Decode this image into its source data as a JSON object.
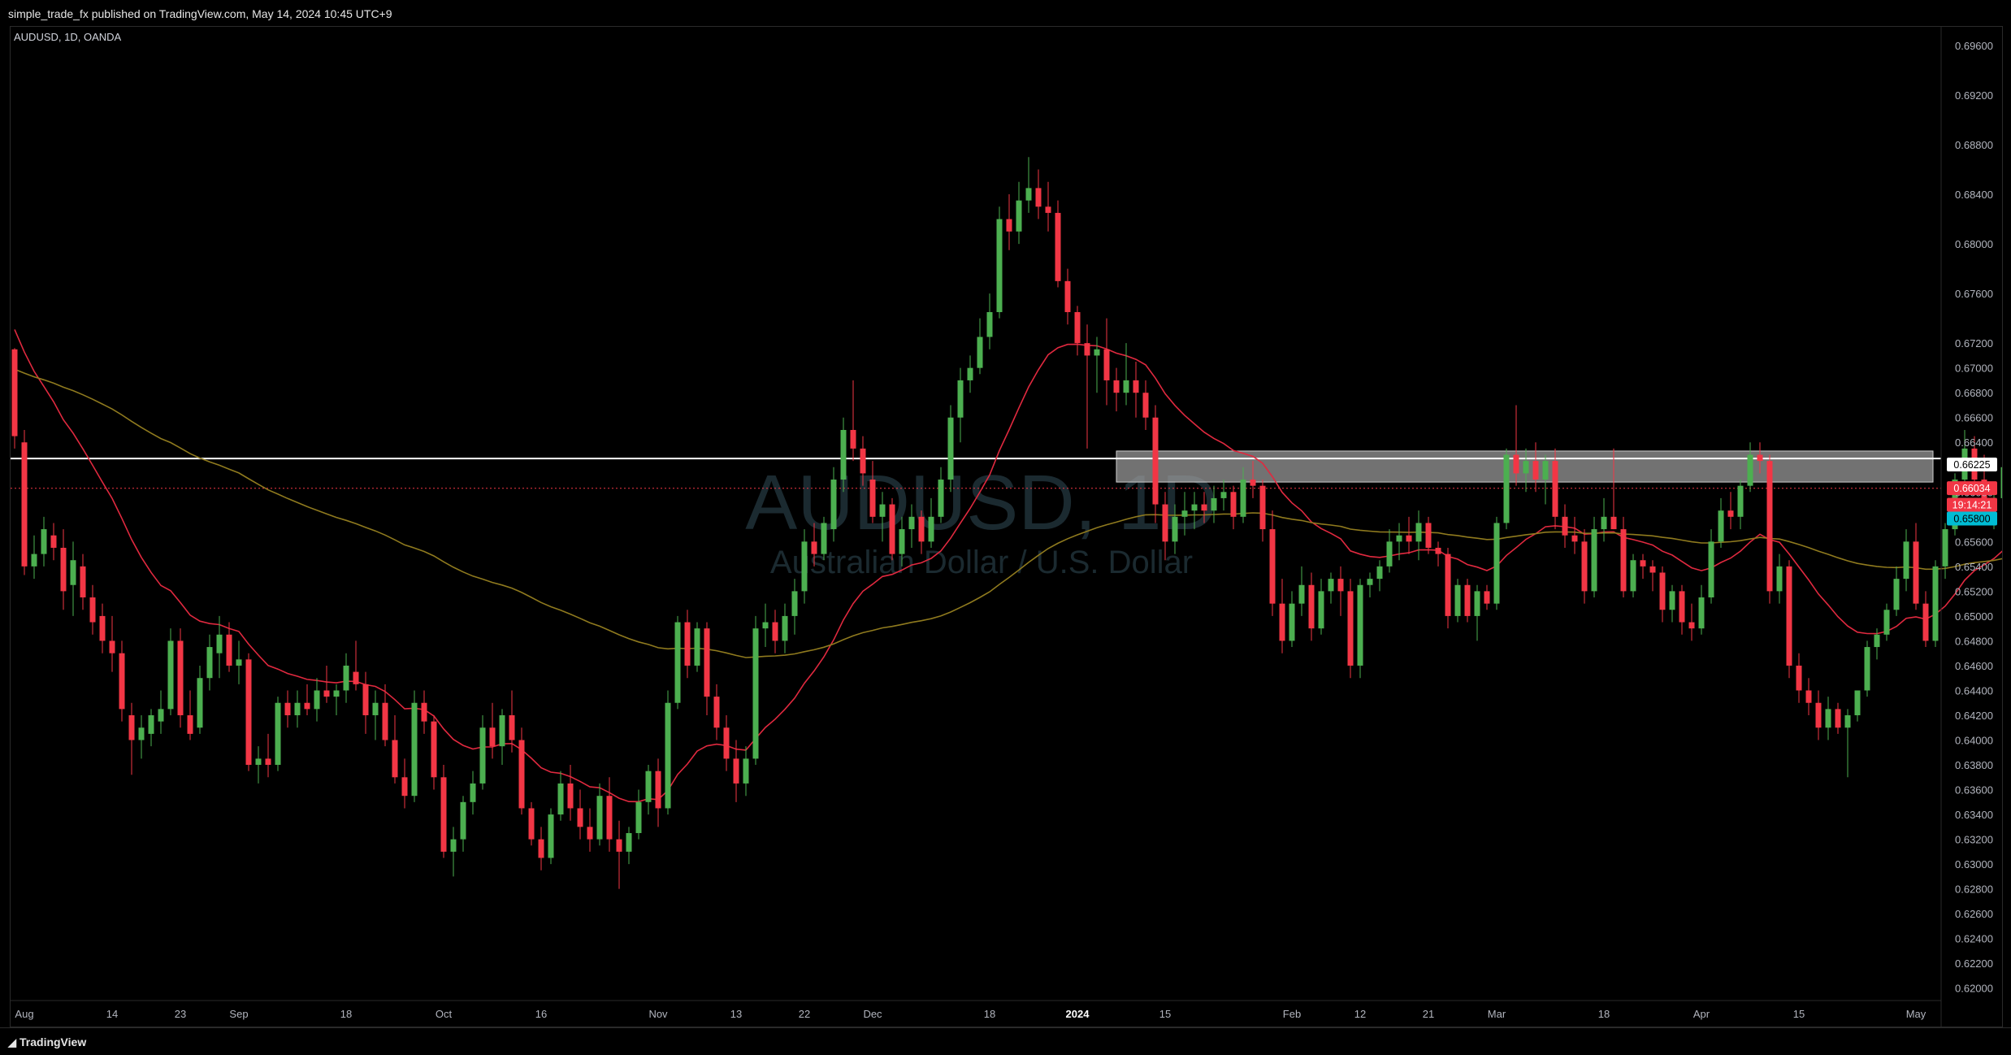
{
  "header": {
    "publish_note": "simple_trade_fx published on TradingView.com, May 14, 2024 10:45 UTC+9"
  },
  "footer": {
    "brand": "TradingView"
  },
  "colors": {
    "up": "#4caf50",
    "down": "#f23645",
    "ema_short": "#e0293f",
    "ema_long": "#8f7a1e",
    "zone_fill": "#9e9e9e",
    "level_line": "#ffffff",
    "price_tag": "#f23645",
    "last_tag": "#00bcd4",
    "grid_text": "#b2b5be"
  },
  "chart_data": {
    "type": "candlestick",
    "symbol_label": "AUDUSD, 1D, OANDA",
    "watermark_symbol": "AUDUSD, 1D",
    "watermark_name": "Australian Dollar / U.S. Dollar",
    "ylim": [
      0.619,
      0.6975
    ],
    "y_ticks": [
      "0.69600",
      "0.69200",
      "0.68800",
      "0.68400",
      "0.68000",
      "0.67600",
      "0.67200",
      "0.67000",
      "0.66800",
      "0.66600",
      "0.66400",
      "0.66200",
      "0.66000",
      "0.65800",
      "0.65600",
      "0.65400",
      "0.65200",
      "0.65000",
      "0.64800",
      "0.64600",
      "0.64400",
      "0.64200",
      "0.64000",
      "0.63800",
      "0.63600",
      "0.63400",
      "0.63200",
      "0.63000",
      "0.62800",
      "0.62600",
      "0.62400",
      "0.62200",
      "0.62000"
    ],
    "x_ticks": [
      {
        "label": "Aug",
        "i": 1
      },
      {
        "label": "14",
        "i": 10
      },
      {
        "label": "23",
        "i": 17
      },
      {
        "label": "Sep",
        "i": 23
      },
      {
        "label": "18",
        "i": 34
      },
      {
        "label": "Oct",
        "i": 44
      },
      {
        "label": "16",
        "i": 54
      },
      {
        "label": "Nov",
        "i": 66
      },
      {
        "label": "13",
        "i": 74
      },
      {
        "label": "22",
        "i": 81
      },
      {
        "label": "Dec",
        "i": 88
      },
      {
        "label": "18",
        "i": 100
      },
      {
        "label": "2024",
        "i": 109
      },
      {
        "label": "15",
        "i": 118
      },
      {
        "label": "Feb",
        "i": 131
      },
      {
        "label": "12",
        "i": 138
      },
      {
        "label": "21",
        "i": 145
      },
      {
        "label": "Mar",
        "i": 152
      },
      {
        "label": "18",
        "i": 163
      },
      {
        "label": "Apr",
        "i": 173
      },
      {
        "label": "15",
        "i": 183
      },
      {
        "label": "May",
        "i": 195
      }
    ],
    "resistance_zone": {
      "low": 0.6608,
      "high": 0.6633,
      "start_i": 113
    },
    "horizontal_level": 0.6627,
    "last_price_line": 0.6603,
    "price_tags": [
      {
        "label": "0.66225",
        "value": 0.66225,
        "style": "white"
      },
      {
        "label": "0.66034",
        "value": 0.66034,
        "style": "red"
      },
      {
        "label": "19:14:21",
        "value": 0.659,
        "style": "red"
      },
      {
        "label": "0.65800",
        "value": 0.6579,
        "style": "cyan"
      }
    ],
    "candles": [
      [
        0.6715,
        0.6716,
        0.6635,
        0.6645
      ],
      [
        0.664,
        0.665,
        0.6533,
        0.654
      ],
      [
        0.654,
        0.6565,
        0.653,
        0.655
      ],
      [
        0.655,
        0.658,
        0.654,
        0.657
      ],
      [
        0.6565,
        0.6575,
        0.6545,
        0.6555
      ],
      [
        0.6555,
        0.657,
        0.6505,
        0.652
      ],
      [
        0.6525,
        0.656,
        0.65,
        0.6545
      ],
      [
        0.654,
        0.655,
        0.6505,
        0.6515
      ],
      [
        0.6515,
        0.6525,
        0.6485,
        0.6495
      ],
      [
        0.65,
        0.651,
        0.647,
        0.648
      ],
      [
        0.648,
        0.65,
        0.6455,
        0.647
      ],
      [
        0.647,
        0.648,
        0.6415,
        0.6425
      ],
      [
        0.642,
        0.643,
        0.6372,
        0.64
      ],
      [
        0.64,
        0.642,
        0.6385,
        0.641
      ],
      [
        0.6405,
        0.6425,
        0.6395,
        0.642
      ],
      [
        0.6415,
        0.644,
        0.6405,
        0.6425
      ],
      [
        0.6425,
        0.649,
        0.642,
        0.648
      ],
      [
        0.648,
        0.649,
        0.641,
        0.642
      ],
      [
        0.642,
        0.644,
        0.64,
        0.6405
      ],
      [
        0.641,
        0.646,
        0.6405,
        0.645
      ],
      [
        0.645,
        0.6485,
        0.644,
        0.6475
      ],
      [
        0.647,
        0.65,
        0.645,
        0.6485
      ],
      [
        0.6485,
        0.6495,
        0.6455,
        0.646
      ],
      [
        0.646,
        0.648,
        0.6445,
        0.6465
      ],
      [
        0.6465,
        0.647,
        0.6375,
        0.638
      ],
      [
        0.638,
        0.6395,
        0.6365,
        0.6385
      ],
      [
        0.6385,
        0.6405,
        0.637,
        0.638
      ],
      [
        0.638,
        0.6435,
        0.6375,
        0.643
      ],
      [
        0.643,
        0.644,
        0.641,
        0.642
      ],
      [
        0.642,
        0.644,
        0.641,
        0.643
      ],
      [
        0.643,
        0.6445,
        0.642,
        0.6425
      ],
      [
        0.6425,
        0.645,
        0.6415,
        0.644
      ],
      [
        0.644,
        0.646,
        0.643,
        0.6435
      ],
      [
        0.6435,
        0.6445,
        0.642,
        0.644
      ],
      [
        0.644,
        0.647,
        0.643,
        0.646
      ],
      [
        0.6455,
        0.648,
        0.644,
        0.6445
      ],
      [
        0.6445,
        0.6455,
        0.6405,
        0.642
      ],
      [
        0.642,
        0.644,
        0.64,
        0.643
      ],
      [
        0.643,
        0.6445,
        0.6395,
        0.64
      ],
      [
        0.64,
        0.642,
        0.6365,
        0.637
      ],
      [
        0.637,
        0.6385,
        0.6345,
        0.6355
      ],
      [
        0.6355,
        0.644,
        0.635,
        0.643
      ],
      [
        0.643,
        0.644,
        0.6405,
        0.6415
      ],
      [
        0.6415,
        0.642,
        0.636,
        0.637
      ],
      [
        0.637,
        0.638,
        0.6305,
        0.631
      ],
      [
        0.631,
        0.633,
        0.629,
        0.632
      ],
      [
        0.632,
        0.6355,
        0.631,
        0.635
      ],
      [
        0.635,
        0.6375,
        0.634,
        0.6365
      ],
      [
        0.6365,
        0.642,
        0.636,
        0.641
      ],
      [
        0.641,
        0.643,
        0.6385,
        0.6395
      ],
      [
        0.6395,
        0.6425,
        0.638,
        0.642
      ],
      [
        0.642,
        0.644,
        0.639,
        0.64
      ],
      [
        0.64,
        0.641,
        0.634,
        0.6345
      ],
      [
        0.6345,
        0.635,
        0.6315,
        0.632
      ],
      [
        0.632,
        0.633,
        0.6295,
        0.6305
      ],
      [
        0.6305,
        0.6345,
        0.63,
        0.634
      ],
      [
        0.634,
        0.6375,
        0.6335,
        0.6365
      ],
      [
        0.6365,
        0.638,
        0.6335,
        0.6345
      ],
      [
        0.6345,
        0.636,
        0.632,
        0.633
      ],
      [
        0.633,
        0.6345,
        0.631,
        0.632
      ],
      [
        0.632,
        0.6365,
        0.6315,
        0.6355
      ],
      [
        0.6355,
        0.637,
        0.631,
        0.632
      ],
      [
        0.632,
        0.6335,
        0.628,
        0.631
      ],
      [
        0.631,
        0.633,
        0.63,
        0.6325
      ],
      [
        0.6325,
        0.636,
        0.632,
        0.635
      ],
      [
        0.635,
        0.638,
        0.634,
        0.6375
      ],
      [
        0.6375,
        0.6385,
        0.633,
        0.6345
      ],
      [
        0.6345,
        0.644,
        0.634,
        0.643
      ],
      [
        0.643,
        0.65,
        0.6425,
        0.6495
      ],
      [
        0.6495,
        0.6505,
        0.645,
        0.646
      ],
      [
        0.646,
        0.6495,
        0.6455,
        0.649
      ],
      [
        0.649,
        0.6495,
        0.642,
        0.6435
      ],
      [
        0.6435,
        0.6445,
        0.64,
        0.641
      ],
      [
        0.641,
        0.642,
        0.6375,
        0.6385
      ],
      [
        0.6385,
        0.64,
        0.635,
        0.6365
      ],
      [
        0.6365,
        0.6395,
        0.6355,
        0.6385
      ],
      [
        0.6385,
        0.65,
        0.638,
        0.649
      ],
      [
        0.649,
        0.651,
        0.6475,
        0.6495
      ],
      [
        0.6495,
        0.6505,
        0.647,
        0.648
      ],
      [
        0.648,
        0.651,
        0.647,
        0.65
      ],
      [
        0.65,
        0.653,
        0.6485,
        0.652
      ],
      [
        0.652,
        0.657,
        0.651,
        0.656
      ],
      [
        0.656,
        0.6575,
        0.654,
        0.655
      ],
      [
        0.655,
        0.658,
        0.6545,
        0.6575
      ],
      [
        0.657,
        0.662,
        0.656,
        0.661
      ],
      [
        0.661,
        0.666,
        0.66,
        0.665
      ],
      [
        0.665,
        0.669,
        0.6625,
        0.6635
      ],
      [
        0.6635,
        0.6645,
        0.6605,
        0.6615
      ],
      [
        0.661,
        0.6625,
        0.6575,
        0.658
      ],
      [
        0.658,
        0.66,
        0.656,
        0.659
      ],
      [
        0.659,
        0.6595,
        0.6545,
        0.655
      ],
      [
        0.655,
        0.658,
        0.654,
        0.657
      ],
      [
        0.657,
        0.659,
        0.6555,
        0.658
      ],
      [
        0.658,
        0.6585,
        0.655,
        0.656
      ],
      [
        0.656,
        0.6595,
        0.6555,
        0.658
      ],
      [
        0.658,
        0.662,
        0.6575,
        0.661
      ],
      [
        0.661,
        0.667,
        0.66,
        0.666
      ],
      [
        0.666,
        0.67,
        0.664,
        0.669
      ],
      [
        0.669,
        0.671,
        0.668,
        0.67
      ],
      [
        0.67,
        0.674,
        0.6695,
        0.6725
      ],
      [
        0.6725,
        0.676,
        0.6715,
        0.6745
      ],
      [
        0.6745,
        0.683,
        0.674,
        0.682
      ],
      [
        0.682,
        0.684,
        0.6795,
        0.681
      ],
      [
        0.681,
        0.685,
        0.68,
        0.6835
      ],
      [
        0.6835,
        0.687,
        0.6825,
        0.6845
      ],
      [
        0.6845,
        0.686,
        0.682,
        0.683
      ],
      [
        0.683,
        0.685,
        0.681,
        0.6825
      ],
      [
        0.6825,
        0.6835,
        0.6765,
        0.677
      ],
      [
        0.677,
        0.678,
        0.6735,
        0.6745
      ],
      [
        0.6745,
        0.675,
        0.671,
        0.672
      ],
      [
        0.672,
        0.6735,
        0.6635,
        0.671
      ],
      [
        0.671,
        0.6725,
        0.668,
        0.6715
      ],
      [
        0.6715,
        0.674,
        0.667,
        0.669
      ],
      [
        0.669,
        0.67,
        0.6665,
        0.668
      ],
      [
        0.668,
        0.672,
        0.667,
        0.669
      ],
      [
        0.669,
        0.6705,
        0.666,
        0.668
      ],
      [
        0.668,
        0.669,
        0.665,
        0.666
      ],
      [
        0.666,
        0.667,
        0.6575,
        0.659
      ],
      [
        0.659,
        0.66,
        0.6545,
        0.656
      ],
      [
        0.656,
        0.659,
        0.655,
        0.658
      ],
      [
        0.658,
        0.66,
        0.6565,
        0.6585
      ],
      [
        0.6585,
        0.66,
        0.657,
        0.659
      ],
      [
        0.659,
        0.66,
        0.6575,
        0.6585
      ],
      [
        0.6585,
        0.6605,
        0.6575,
        0.6595
      ],
      [
        0.6595,
        0.661,
        0.6585,
        0.66
      ],
      [
        0.66,
        0.6605,
        0.657,
        0.658
      ],
      [
        0.658,
        0.662,
        0.6575,
        0.661
      ],
      [
        0.661,
        0.6625,
        0.6595,
        0.6605
      ],
      [
        0.6605,
        0.661,
        0.656,
        0.657
      ],
      [
        0.657,
        0.6585,
        0.65,
        0.651
      ],
      [
        0.651,
        0.653,
        0.647,
        0.648
      ],
      [
        0.648,
        0.652,
        0.6475,
        0.651
      ],
      [
        0.651,
        0.654,
        0.65,
        0.6525
      ],
      [
        0.6525,
        0.6535,
        0.648,
        0.649
      ],
      [
        0.649,
        0.653,
        0.6485,
        0.652
      ],
      [
        0.652,
        0.6535,
        0.651,
        0.653
      ],
      [
        0.653,
        0.654,
        0.65,
        0.652
      ],
      [
        0.652,
        0.653,
        0.645,
        0.646
      ],
      [
        0.646,
        0.653,
        0.645,
        0.6525
      ],
      [
        0.6525,
        0.6535,
        0.6515,
        0.653
      ],
      [
        0.653,
        0.6545,
        0.652,
        0.654
      ],
      [
        0.654,
        0.657,
        0.6535,
        0.656
      ],
      [
        0.656,
        0.6575,
        0.6545,
        0.6565
      ],
      [
        0.6565,
        0.658,
        0.655,
        0.656
      ],
      [
        0.656,
        0.6585,
        0.6545,
        0.6575
      ],
      [
        0.6575,
        0.658,
        0.655,
        0.6555
      ],
      [
        0.6555,
        0.656,
        0.654,
        0.655
      ],
      [
        0.655,
        0.6555,
        0.649,
        0.65
      ],
      [
        0.65,
        0.653,
        0.6495,
        0.6525
      ],
      [
        0.6525,
        0.653,
        0.6495,
        0.65
      ],
      [
        0.65,
        0.6525,
        0.648,
        0.652
      ],
      [
        0.652,
        0.6525,
        0.6505,
        0.651
      ],
      [
        0.651,
        0.658,
        0.6505,
        0.6575
      ],
      [
        0.6575,
        0.6635,
        0.657,
        0.663
      ],
      [
        0.663,
        0.667,
        0.6605,
        0.6615
      ],
      [
        0.6615,
        0.6635,
        0.66,
        0.6625
      ],
      [
        0.6625,
        0.664,
        0.66,
        0.661
      ],
      [
        0.661,
        0.663,
        0.659,
        0.6625
      ],
      [
        0.6625,
        0.6635,
        0.657,
        0.658
      ],
      [
        0.658,
        0.659,
        0.6555,
        0.6565
      ],
      [
        0.6565,
        0.658,
        0.655,
        0.656
      ],
      [
        0.656,
        0.657,
        0.651,
        0.652
      ],
      [
        0.652,
        0.658,
        0.6515,
        0.657
      ],
      [
        0.657,
        0.6595,
        0.656,
        0.658
      ],
      [
        0.658,
        0.6635,
        0.657,
        0.657
      ],
      [
        0.657,
        0.658,
        0.6515,
        0.652
      ],
      [
        0.652,
        0.655,
        0.6515,
        0.6545
      ],
      [
        0.6545,
        0.655,
        0.653,
        0.654
      ],
      [
        0.654,
        0.6545,
        0.652,
        0.6535
      ],
      [
        0.6535,
        0.654,
        0.6495,
        0.6505
      ],
      [
        0.6505,
        0.6525,
        0.6495,
        0.652
      ],
      [
        0.652,
        0.6525,
        0.6485,
        0.6495
      ],
      [
        0.6495,
        0.651,
        0.648,
        0.649
      ],
      [
        0.649,
        0.6525,
        0.6485,
        0.6515
      ],
      [
        0.6515,
        0.657,
        0.651,
        0.656
      ],
      [
        0.656,
        0.6595,
        0.6555,
        0.6585
      ],
      [
        0.6585,
        0.66,
        0.657,
        0.658
      ],
      [
        0.658,
        0.661,
        0.657,
        0.6605
      ],
      [
        0.6605,
        0.664,
        0.66,
        0.663
      ],
      [
        0.663,
        0.664,
        0.6615,
        0.6625
      ],
      [
        0.6625,
        0.663,
        0.651,
        0.652
      ],
      [
        0.652,
        0.655,
        0.651,
        0.654
      ],
      [
        0.654,
        0.6545,
        0.645,
        0.646
      ],
      [
        0.646,
        0.647,
        0.643,
        0.644
      ],
      [
        0.644,
        0.645,
        0.642,
        0.643
      ],
      [
        0.643,
        0.644,
        0.64,
        0.641
      ],
      [
        0.641,
        0.6435,
        0.64,
        0.6425
      ],
      [
        0.6425,
        0.643,
        0.6405,
        0.641
      ],
      [
        0.641,
        0.6425,
        0.637,
        0.642
      ],
      [
        0.642,
        0.644,
        0.6415,
        0.644
      ],
      [
        0.644,
        0.648,
        0.6435,
        0.6475
      ],
      [
        0.6475,
        0.649,
        0.6465,
        0.6485
      ],
      [
        0.6485,
        0.651,
        0.648,
        0.6505
      ],
      [
        0.6505,
        0.654,
        0.65,
        0.653
      ],
      [
        0.653,
        0.657,
        0.652,
        0.656
      ],
      [
        0.656,
        0.6575,
        0.6505,
        0.651
      ],
      [
        0.651,
        0.652,
        0.6475,
        0.648
      ],
      [
        0.648,
        0.6545,
        0.6475,
        0.654
      ],
      [
        0.654,
        0.6575,
        0.653,
        0.657
      ],
      [
        0.657,
        0.6615,
        0.6565,
        0.661
      ],
      [
        0.661,
        0.665,
        0.6605,
        0.6635
      ],
      [
        0.6635,
        0.6645,
        0.66,
        0.661
      ],
      [
        0.661,
        0.663,
        0.6575,
        0.6585
      ],
      [
        0.6585,
        0.66,
        0.657,
        0.6595
      ],
      [
        0.6595,
        0.6625,
        0.6585,
        0.662
      ],
      [
        0.662,
        0.6625,
        0.6595,
        0.6603
      ]
    ]
  }
}
